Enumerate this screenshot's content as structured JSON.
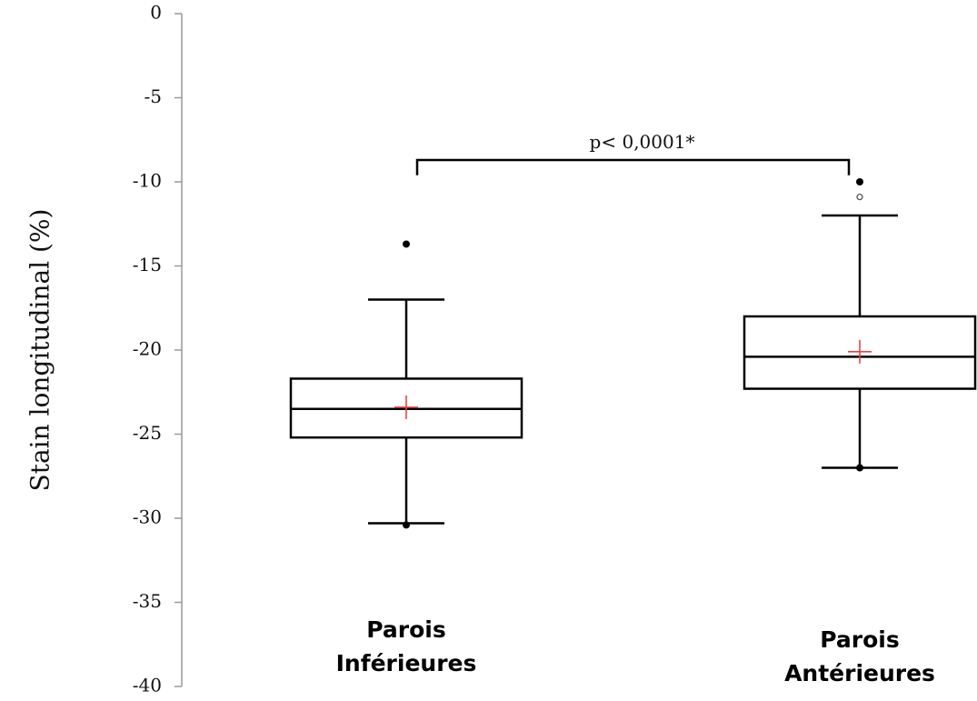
{
  "chart_data": {
    "type": "box",
    "ylabel": "Stain longitudinal (%)",
    "xlabel": "",
    "ylim": [
      -40,
      0
    ],
    "yticks": [
      0,
      -5,
      -10,
      -15,
      -20,
      -25,
      -30,
      -35,
      -40
    ],
    "ytick_labels": [
      "0",
      "-5",
      "-10",
      "-15",
      "-20",
      "-25",
      "-30",
      "-35",
      "-40"
    ],
    "grid": false,
    "colors": {
      "box": "#000000",
      "mean_marker": "#e8414a",
      "axis": "#999999"
    },
    "categories": [
      {
        "label_lines": [
          "Parois",
          "Inférieures"
        ],
        "min": -30.3,
        "q1": -25.2,
        "median": -23.5,
        "q3": -21.7,
        "max": -17.0,
        "mean": -23.4,
        "outliers_filled": [
          -13.7,
          -30.4
        ],
        "outliers_open": []
      },
      {
        "label_lines": [
          "Parois",
          "Antérieures"
        ],
        "min": -27.0,
        "q1": -22.3,
        "median": -20.4,
        "q3": -18.0,
        "max": -12.0,
        "mean": -20.1,
        "outliers_filled": [
          -10.0,
          -27.0
        ],
        "outliers_open": [
          -10.9
        ]
      }
    ],
    "annotation": {
      "text": "p< 0,0001*",
      "bracket_y": -8.7,
      "bracket_tick_y": -9.5
    }
  }
}
